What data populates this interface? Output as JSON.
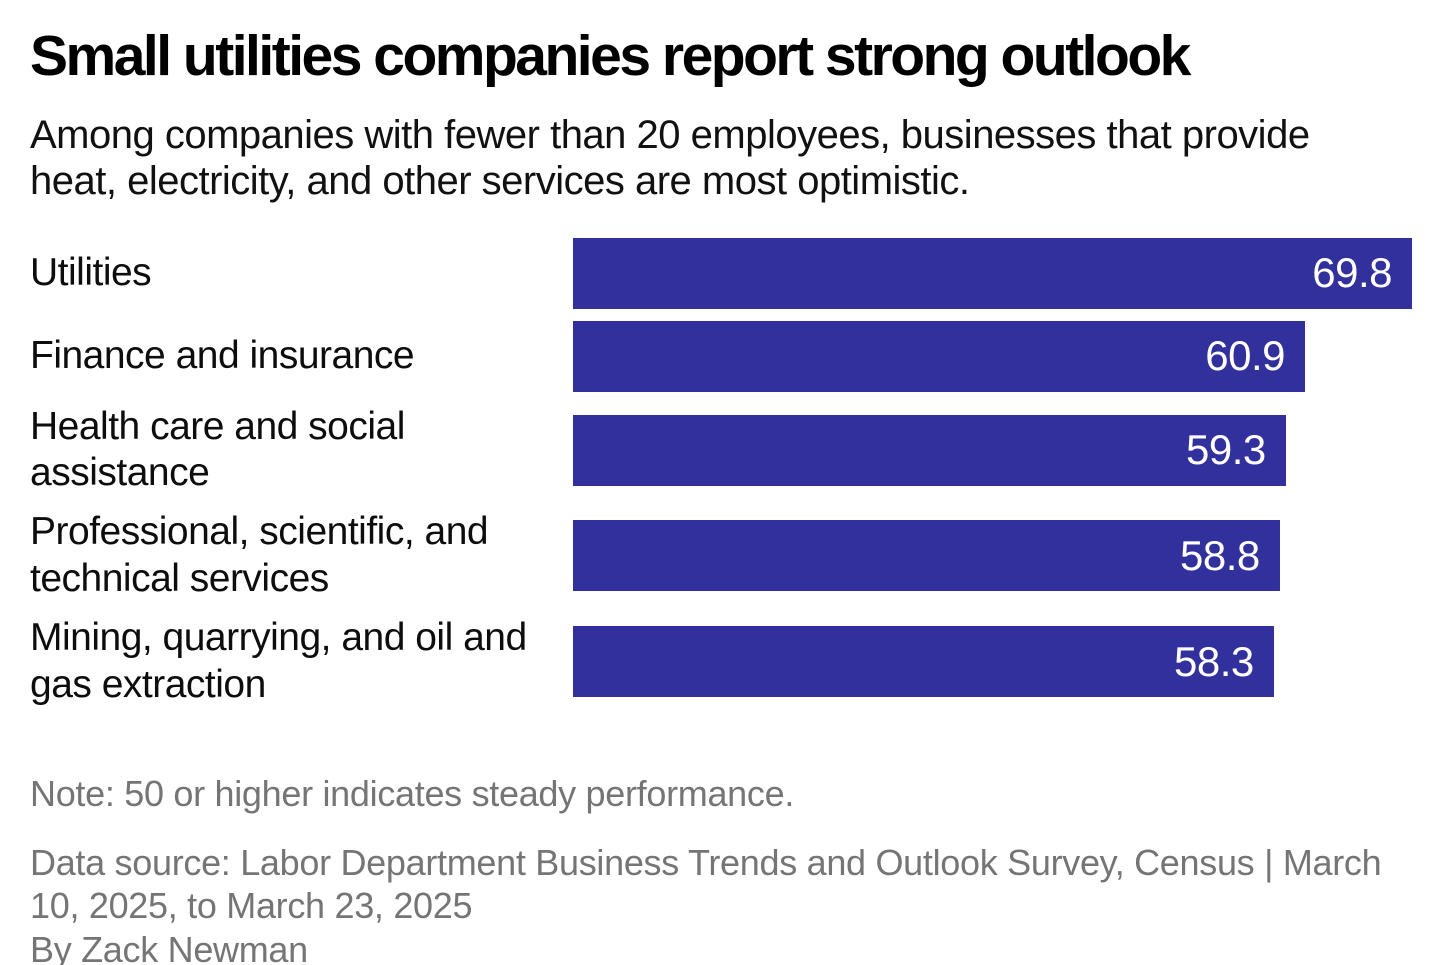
{
  "title": "Small utilities companies report strong outlook",
  "subtitle": "Among companies with fewer than 20 employees, businesses that provide heat, electricity, and other services are most optimistic.",
  "chart_data": {
    "type": "bar",
    "orientation": "horizontal",
    "categories": [
      "Utilities",
      "Finance and insurance",
      "Health care and social assistance",
      "Professional, scientific, and technical services",
      "Mining, quarrying, and oil and gas extraction"
    ],
    "values": [
      69.8,
      60.9,
      59.3,
      58.8,
      58.3
    ],
    "value_labels": [
      "69.8",
      "60.9",
      "59.3",
      "58.8",
      "58.3"
    ],
    "xlim": [
      0,
      69.8
    ],
    "grid": false,
    "legend": "none",
    "bar_color": "#32309d",
    "value_label_color": "#ffffff",
    "title": "Small utilities companies report strong outlook",
    "xlabel": "",
    "ylabel": ""
  },
  "footer": {
    "note": "Note: 50 or higher indicates steady performance.",
    "source": "Data source: Labor Department Business Trends and Outlook Survey, Census | March 10, 2025, to March 23, 2025",
    "byline": "By Zack Newman"
  }
}
